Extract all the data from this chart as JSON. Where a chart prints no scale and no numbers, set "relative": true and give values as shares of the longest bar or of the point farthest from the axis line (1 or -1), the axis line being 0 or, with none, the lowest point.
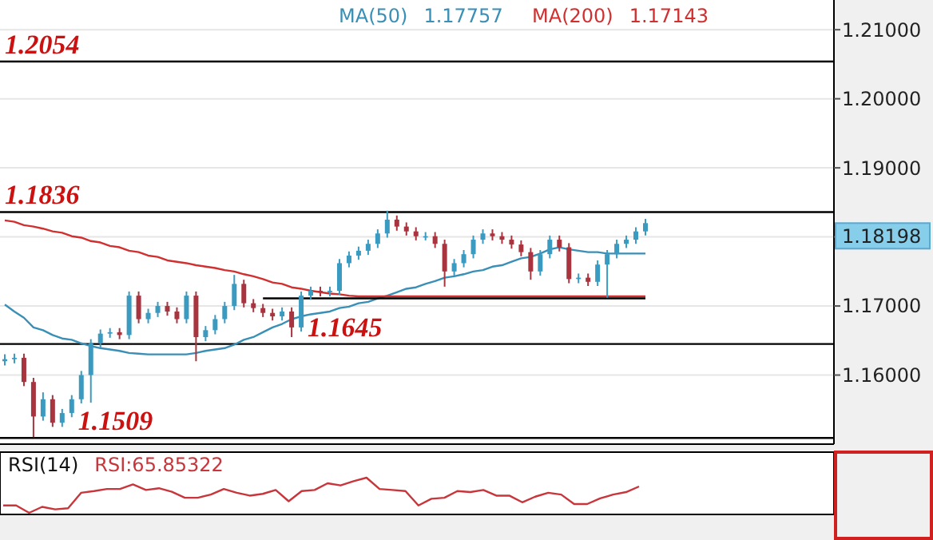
{
  "chart_data": [
    {
      "type": "candlestick",
      "categories": [
        null,
        null,
        null,
        null,
        null,
        null,
        null,
        null,
        null,
        null,
        null,
        null,
        null,
        null,
        null,
        null,
        null,
        null,
        null,
        null,
        null,
        null,
        null,
        null,
        null,
        null,
        null,
        null,
        null,
        null,
        null,
        null,
        null,
        null,
        null,
        null,
        null,
        null,
        null,
        null,
        null,
        null,
        null,
        null,
        null,
        null,
        null,
        null,
        null,
        null,
        null,
        null,
        null,
        null,
        null,
        null,
        null,
        null,
        null,
        null,
        null,
        null,
        null,
        null,
        null,
        null,
        null,
        null
      ],
      "ohlc": [
        [
          1.162,
          1.163,
          1.1614,
          1.1623
        ],
        [
          1.1623,
          1.1631,
          1.1617,
          1.1625
        ],
        [
          1.1625,
          1.1631,
          1.1584,
          1.159
        ],
        [
          1.159,
          1.1596,
          1.151,
          1.154
        ],
        [
          1.154,
          1.1575,
          1.1534,
          1.1565
        ],
        [
          1.1565,
          1.1571,
          1.1525,
          1.1531
        ],
        [
          1.1531,
          1.1551,
          1.1525,
          1.1545
        ],
        [
          1.1545,
          1.1571,
          1.1539,
          1.1565
        ],
        [
          1.1565,
          1.1606,
          1.1559,
          1.16
        ],
        [
          1.16,
          1.1652,
          1.156,
          1.1646
        ],
        [
          1.1646,
          1.1666,
          1.164,
          1.166
        ],
        [
          1.166,
          1.1668,
          1.1654,
          1.1662
        ],
        [
          1.1662,
          1.1668,
          1.1652,
          1.1658
        ],
        [
          1.1658,
          1.1721,
          1.1652,
          1.1715
        ],
        [
          1.1715,
          1.1721,
          1.1675,
          1.1681
        ],
        [
          1.1681,
          1.1696,
          1.1675,
          1.169
        ],
        [
          1.169,
          1.1706,
          1.1684,
          1.17
        ],
        [
          1.17,
          1.1706,
          1.1686,
          1.1692
        ],
        [
          1.1692,
          1.1698,
          1.1675,
          1.1681
        ],
        [
          1.1681,
          1.1721,
          1.1675,
          1.1715
        ],
        [
          1.1715,
          1.1721,
          1.162,
          1.1655
        ],
        [
          1.1655,
          1.1671,
          1.1649,
          1.1665
        ],
        [
          1.1665,
          1.1687,
          1.1659,
          1.1681
        ],
        [
          1.1681,
          1.1706,
          1.1675,
          1.17
        ],
        [
          1.17,
          1.1745,
          1.1694,
          1.1732
        ],
        [
          1.1732,
          1.1738,
          1.1698,
          1.1704
        ],
        [
          1.1704,
          1.171,
          1.1691,
          1.1697
        ],
        [
          1.1697,
          1.1703,
          1.1684,
          1.169
        ],
        [
          1.169,
          1.1696,
          1.1679,
          1.1685
        ],
        [
          1.1685,
          1.1698,
          1.1679,
          1.1692
        ],
        [
          1.1692,
          1.1698,
          1.1655,
          1.1669
        ],
        [
          1.1669,
          1.1721,
          1.1663,
          1.1715
        ],
        [
          1.1715,
          1.1728,
          1.1709,
          1.1722
        ],
        [
          1.1722,
          1.1728,
          1.1714,
          1.172
        ],
        [
          1.172,
          1.1728,
          1.1714,
          1.1722
        ],
        [
          1.1722,
          1.1768,
          1.1716,
          1.1762
        ],
        [
          1.1762,
          1.1779,
          1.1756,
          1.1773
        ],
        [
          1.1773,
          1.1786,
          1.1767,
          1.178
        ],
        [
          1.178,
          1.1796,
          1.1774,
          1.179
        ],
        [
          1.179,
          1.1811,
          1.1784,
          1.1805
        ],
        [
          1.1805,
          1.1838,
          1.1799,
          1.1825
        ],
        [
          1.1825,
          1.1831,
          1.1809,
          1.1815
        ],
        [
          1.1815,
          1.1821,
          1.1802,
          1.1808
        ],
        [
          1.1808,
          1.1814,
          1.1795,
          1.1801
        ],
        [
          1.1801,
          1.1807,
          1.1795,
          1.1801
        ],
        [
          1.1801,
          1.1807,
          1.1784,
          1.179
        ],
        [
          1.179,
          1.1796,
          1.1728,
          1.175
        ],
        [
          1.175,
          1.1768,
          1.1744,
          1.1762
        ],
        [
          1.1762,
          1.1781,
          1.1756,
          1.1775
        ],
        [
          1.1775,
          1.1802,
          1.1769,
          1.1796
        ],
        [
          1.1796,
          1.1811,
          1.179,
          1.1805
        ],
        [
          1.1805,
          1.1811,
          1.1795,
          1.1801
        ],
        [
          1.1801,
          1.1807,
          1.179,
          1.1796
        ],
        [
          1.1796,
          1.1802,
          1.1783,
          1.1789
        ],
        [
          1.1789,
          1.1795,
          1.1772,
          1.1778
        ],
        [
          1.1778,
          1.1784,
          1.1738,
          1.175
        ],
        [
          1.175,
          1.1781,
          1.1744,
          1.1775
        ],
        [
          1.1775,
          1.1802,
          1.1769,
          1.1796
        ],
        [
          1.1796,
          1.1802,
          1.1779,
          1.1785
        ],
        [
          1.1785,
          1.1791,
          1.1733,
          1.1739
        ],
        [
          1.1739,
          1.1747,
          1.1733,
          1.1741
        ],
        [
          1.1741,
          1.1747,
          1.1729,
          1.1735
        ],
        [
          1.1735,
          1.1766,
          1.1729,
          1.176
        ],
        [
          1.176,
          1.1781,
          1.1712,
          1.1775
        ],
        [
          1.1775,
          1.1796,
          1.1769,
          1.179
        ],
        [
          1.179,
          1.1802,
          1.1784,
          1.1796
        ],
        [
          1.1796,
          1.1814,
          1.179,
          1.1808
        ],
        [
          1.1808,
          1.1826,
          1.1802,
          1.182
        ]
      ],
      "colors": [
        "#3b9ac0",
        "#3b9ac0",
        "#a8343f",
        "#a8343f",
        "#3b9ac0",
        "#a8343f",
        "#3b9ac0",
        "#3b9ac0",
        "#3b9ac0",
        "#3b9ac0",
        "#3b9ac0",
        "#3b9ac0",
        "#a8343f",
        "#3b9ac0",
        "#a8343f",
        "#3b9ac0",
        "#3b9ac0",
        "#a8343f",
        "#a8343f",
        "#3b9ac0",
        "#a8343f",
        "#3b9ac0",
        "#3b9ac0",
        "#3b9ac0",
        "#3b9ac0",
        "#a8343f",
        "#a8343f",
        "#a8343f",
        "#a8343f",
        "#3b9ac0",
        "#a8343f",
        "#3b9ac0",
        "#3b9ac0",
        "#a8343f",
        "#3b9ac0",
        "#3b9ac0",
        "#3b9ac0",
        "#3b9ac0",
        "#3b9ac0",
        "#3b9ac0",
        "#3b9ac0",
        "#a8343f",
        "#a8343f",
        "#a8343f",
        "#3b9ac0",
        "#a8343f",
        "#a8343f",
        "#3b9ac0",
        "#3b9ac0",
        "#3b9ac0",
        "#3b9ac0",
        "#a8343f",
        "#a8343f",
        "#a8343f",
        "#a8343f",
        "#a8343f",
        "#3b9ac0",
        "#3b9ac0",
        "#a8343f",
        "#a8343f",
        "#3b9ac0",
        "#a8343f",
        "#3b9ac0",
        "#3b9ac0",
        "#3b9ac0",
        "#3b9ac0",
        "#3b9ac0",
        "#3b9ac0"
      ],
      "series": [
        {
          "type": "line",
          "name": "MA(50)",
          "color": "#3a8fb7",
          "values": [
            1.1702,
            1.1692,
            1.1683,
            1.1669,
            1.1665,
            1.1658,
            1.1653,
            1.1651,
            1.1646,
            1.1642,
            1.1639,
            1.1637,
            1.1635,
            1.1632,
            1.1631,
            1.163,
            1.163,
            1.163,
            1.163,
            1.163,
            1.1632,
            1.1635,
            1.1637,
            1.1639,
            1.1644,
            1.1651,
            1.1655,
            1.1662,
            1.1669,
            1.1674,
            1.1681,
            1.1685,
            1.1688,
            1.169,
            1.1692,
            1.1697,
            1.1699,
            1.1704,
            1.1706,
            1.1711,
            1.1715,
            1.172,
            1.1725,
            1.1727,
            1.1732,
            1.1736,
            1.1741,
            1.1743,
            1.1746,
            1.175,
            1.1752,
            1.1757,
            1.1759,
            1.1764,
            1.1769,
            1.1771,
            1.1776,
            1.1782,
            1.1785,
            1.1782,
            1.178,
            1.1778,
            1.1778,
            1.1776,
            1.1776,
            1.1776,
            1.1776,
            1.1776
          ]
        },
        {
          "type": "line",
          "name": "MA(200)",
          "color": "#d03030",
          "values": [
            1.1824,
            1.1822,
            1.1817,
            1.1815,
            1.1812,
            1.1808,
            1.1806,
            1.1801,
            1.1799,
            1.1794,
            1.1792,
            1.1787,
            1.1785,
            1.178,
            1.1778,
            1.1773,
            1.1771,
            1.1766,
            1.1764,
            1.1762,
            1.1759,
            1.1757,
            1.1755,
            1.1752,
            1.175,
            1.1746,
            1.1743,
            1.1739,
            1.1734,
            1.1732,
            1.1727,
            1.1725,
            1.1722,
            1.172,
            1.1718,
            1.1717,
            1.1715,
            1.1714,
            1.1714,
            1.1714,
            1.1714,
            1.1714,
            1.1714,
            1.1714,
            1.1714,
            1.1714,
            1.1714,
            1.1714,
            1.1714,
            1.1714,
            1.1714,
            1.1714,
            1.1714,
            1.1714,
            1.1714,
            1.1714,
            1.1714,
            1.1714,
            1.1714,
            1.1714,
            1.1714,
            1.1714,
            1.1714,
            1.1714,
            1.1714,
            1.1714,
            1.1714,
            1.1714
          ]
        },
        {
          "type": "line",
          "color": "#000000",
          "values": [
            null,
            null,
            null,
            null,
            null,
            null,
            null,
            null,
            null,
            null,
            null,
            null,
            null,
            null,
            null,
            null,
            null,
            null,
            null,
            null,
            null,
            null,
            null,
            null,
            null,
            null,
            null,
            1.1711,
            1.1711,
            1.1711,
            1.1711,
            1.1711,
            1.1711,
            1.1711,
            1.1711,
            1.1711,
            1.1711,
            1.1711,
            1.1711,
            1.1711,
            1.1711,
            1.1711,
            1.1711,
            1.1711,
            1.1711,
            1.1711,
            1.1711,
            1.1711,
            1.1711,
            1.1711,
            1.1711,
            1.1711,
            1.1711,
            1.1711,
            1.1711,
            1.1711,
            1.1711,
            1.1711,
            1.1711,
            1.1711,
            1.1711,
            1.1711,
            1.1711,
            1.1711,
            1.1711,
            1.1711,
            1.1711,
            1.1711
          ]
        }
      ],
      "ylim": [
        1.15,
        1.2143
      ],
      "yticks": [
        {
          "value": 1.16,
          "label": "1.16000"
        },
        {
          "value": 1.17,
          "label": "1.17000"
        },
        {
          "value": 1.18,
          "label": null
        },
        {
          "value": 1.19,
          "label": "1.19000"
        },
        {
          "value": 1.2,
          "label": "1.20000"
        },
        {
          "value": 1.21,
          "label": "1.21000"
        }
      ],
      "grid": "y",
      "tick_labels": "y",
      "legend": "top",
      "ref_lines": [
        {
          "axis": "y",
          "value": 1.2054,
          "label": "1.2054",
          "color": "#000000"
        },
        {
          "axis": "y",
          "value": 1.1836,
          "label": "1.1836",
          "color": "#000000"
        },
        {
          "axis": "y",
          "value": 1.1645,
          "label": "1.1645",
          "color": "#000000"
        },
        {
          "axis": "y",
          "value": 1.1509,
          "label": "1.1509",
          "color": "#000000"
        }
      ],
      "annotations": [
        "1.18198",
        "1.17757",
        "1.17143"
      ]
    },
    {
      "type": "line",
      "title": "RSI(14)",
      "relative": true,
      "tick_labels": false,
      "legend": "top left",
      "categories": [
        null,
        null,
        null,
        null,
        null,
        null,
        null,
        null,
        null,
        null,
        null,
        null,
        null,
        null,
        null,
        null,
        null,
        null,
        null,
        null,
        null,
        null,
        null,
        null,
        null,
        null,
        null,
        null,
        null,
        null,
        null,
        null,
        null,
        null,
        null,
        null,
        null,
        null,
        null,
        null,
        null,
        null,
        null,
        null,
        null,
        null,
        null,
        null,
        null,
        null
      ],
      "series": [
        {
          "name": "RSI:65.85322",
          "color": "#c8353a",
          "values": [
            0.21,
            0.21,
            0,
            0.17,
            0.1,
            0.13,
            0.57,
            0.62,
            0.68,
            0.68,
            0.81,
            0.65,
            0.7,
            0.6,
            0.43,
            0.43,
            0.52,
            0.68,
            0.57,
            0.49,
            0.54,
            0.65,
            0.33,
            0.62,
            0.65,
            0.84,
            0.78,
            0.9,
            1,
            0.68,
            0.65,
            0.62,
            0.21,
            0.4,
            0.43,
            0.62,
            0.59,
            0.65,
            0.49,
            0.49,
            0.3,
            0.46,
            0.57,
            0.52,
            0.25,
            0.25,
            0.41,
            0.52,
            0.59,
            0.75
          ]
        }
      ]
    }
  ]
}
